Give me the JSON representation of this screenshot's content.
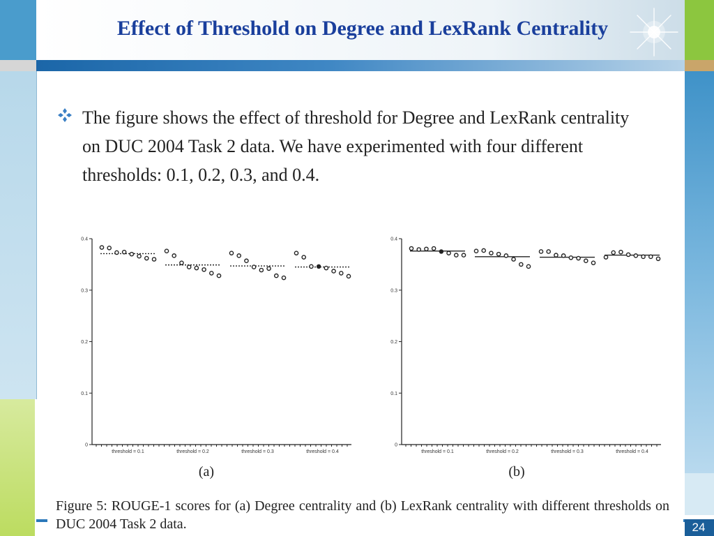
{
  "slide": {
    "title": "Effect of Threshold on Degree and LexRank Centrality",
    "bullet_text": "The figure shows the effect of threshold for Degree and LexRank centrality on DUC 2004 Task 2 data. We have experimented with four different thresholds: 0.1, 0.2, 0.3, and 0.4.",
    "caption": "Figure 5: ROUGE-1 scores for (a) Degree centrality and (b) LexRank centrality with different thresholds on DUC 2004 Task 2 data.",
    "page_number": "24"
  },
  "colors": {
    "title": "#1a3f9c",
    "accent_blue": "#2b78ba",
    "accent_green": "#8cc63f"
  },
  "icons": {
    "bullet": "diamond-bullet-icon",
    "decoration": "sparkle-star-icon"
  },
  "chart_data": [
    {
      "type": "scatter",
      "panel_label": "(a)",
      "ylabel": "",
      "ylim": [
        0,
        0.4
      ],
      "yticks": [
        "0",
        "0.1",
        "0.2",
        "0.3",
        "0.4"
      ],
      "categories": [
        "threshold = 0.1",
        "threshold = 0.2",
        "threshold = 0.3",
        "threshold = 0.4"
      ],
      "series": [
        {
          "values": [
            0.383,
            0.382,
            0.373,
            0.374,
            0.37,
            0.366,
            0.362,
            0.36
          ]
        },
        {
          "values": [
            0.376,
            0.367,
            0.353,
            0.345,
            0.343,
            0.34,
            0.333,
            0.328
          ]
        },
        {
          "values": [
            0.372,
            0.367,
            0.357,
            0.345,
            0.339,
            0.342,
            0.328,
            0.324
          ]
        },
        {
          "values": [
            0.372,
            0.364,
            0.346,
            0.346,
            0.343,
            0.337,
            0.333,
            0.327
          ]
        }
      ],
      "means": [
        0.371,
        0.349,
        0.347,
        0.345
      ],
      "mean_style": "dashed"
    },
    {
      "type": "scatter",
      "panel_label": "(b)",
      "ylabel": "",
      "ylim": [
        0,
        0.4
      ],
      "yticks": [
        "0",
        "0.1",
        "0.2",
        "0.3",
        "0.4"
      ],
      "categories": [
        "threshold = 0.1",
        "threshold = 0.2",
        "threshold = 0.3",
        "threshold = 0.4"
      ],
      "series": [
        {
          "values": [
            0.381,
            0.379,
            0.38,
            0.381,
            0.375,
            0.372,
            0.368,
            0.368
          ]
        },
        {
          "values": [
            0.376,
            0.377,
            0.372,
            0.37,
            0.367,
            0.36,
            0.35,
            0.346
          ]
        },
        {
          "values": [
            0.375,
            0.375,
            0.368,
            0.367,
            0.363,
            0.362,
            0.357,
            0.353
          ]
        },
        {
          "values": [
            0.364,
            0.373,
            0.374,
            0.369,
            0.367,
            0.365,
            0.365,
            0.361
          ]
        }
      ],
      "means": [
        0.376,
        0.365,
        0.364,
        0.368
      ],
      "mean_style": "solid"
    }
  ]
}
